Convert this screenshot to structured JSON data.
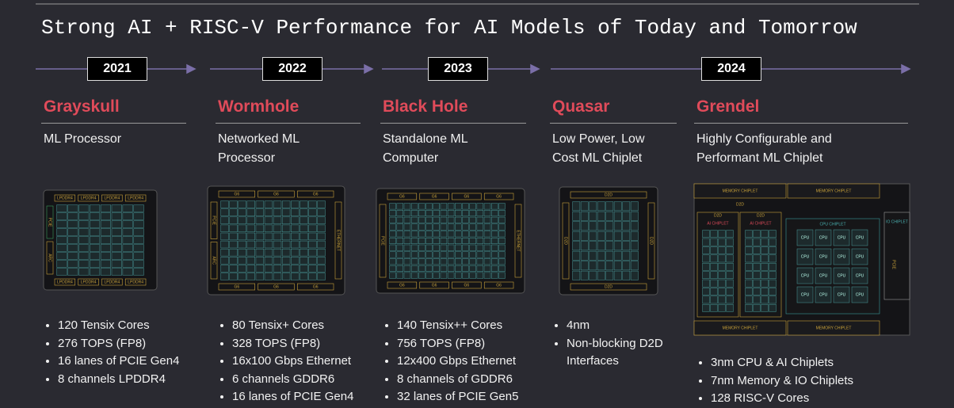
{
  "title": "Strong AI + RISC-V Performance for AI Models of Today and Tomorrow",
  "years": [
    "2021",
    "2022",
    "2023",
    "2024"
  ],
  "products": [
    {
      "name": "Grayskull",
      "description": "ML Processor",
      "bullets": [
        "120 Tensix Cores",
        "276 TOPS (FP8)",
        "16 lanes of PCIE Gen4",
        "8 channels LPDDR4"
      ],
      "chip": {
        "top": [
          "LPDDR4",
          "LPDDR4",
          "LPDDR4",
          "LPDDR4"
        ],
        "bottom": [
          "LPDDR4",
          "LPDDR4",
          "LPDDR4",
          "LPDDR4"
        ],
        "left": [
          "PCIE",
          "ARC"
        ],
        "right": []
      }
    },
    {
      "name": "Wormhole",
      "description": "Networked ML Processor",
      "bullets": [
        "80 Tensix+ Cores",
        "328 TOPS (FP8)",
        "16x100 Gbps Ethernet",
        "6 channels GDDR6",
        "16 lanes of PCIE Gen4"
      ],
      "chip": {
        "top": [
          "G6",
          "G6",
          "G6"
        ],
        "bottom": [
          "G6",
          "G6",
          "G6"
        ],
        "left": [
          "PCIE",
          "ARC"
        ],
        "right": [
          "ETHERNET"
        ]
      }
    },
    {
      "name": "Black Hole",
      "description": "Standalone ML Computer",
      "bullets": [
        "140 Tensix++ Cores",
        "756 TOPS (FP8)",
        "12x400 Gbps Ethernet",
        "8 channels of GDDR6",
        "32 lanes of PCIE Gen5"
      ],
      "chip": {
        "top": [
          "G6",
          "G6",
          "G6",
          "G6"
        ],
        "bottom": [
          "G6",
          "G6",
          "G6",
          "G6"
        ],
        "left": [
          "PCIE"
        ],
        "right": [
          "ETHERNET"
        ]
      }
    },
    {
      "name": "Quasar",
      "description": "Low Power, Low Cost ML Chiplet",
      "bullets": [
        "4nm",
        "Non-blocking D2D Interfaces"
      ],
      "chip": {
        "top": [
          "D2D"
        ],
        "bottom": [
          "D2D"
        ],
        "left": [
          "D2D"
        ],
        "right": [
          "D2D"
        ]
      }
    },
    {
      "name": "Grendel",
      "description": "Highly Configurable and Performant ML Chiplet",
      "bullets": [
        "3nm CPU & AI Chiplets",
        "7nm Memory & IO Chiplets",
        "128 RISC-V Cores"
      ],
      "chip": {
        "memory": [
          "MEMORY CHIPLET",
          "MEMORY CHIPLET",
          "MEMORY CHIPLET",
          "MEMORY CHIPLET"
        ],
        "ai": [
          "AI CHIPLET",
          "AI CHIPLET"
        ],
        "cpu_chiplet": "CPU CHIPLET",
        "io": "IO CHIPLET",
        "d2d": "D2D",
        "cpu": "CPU",
        "pcie": "PCIE"
      }
    }
  ]
}
